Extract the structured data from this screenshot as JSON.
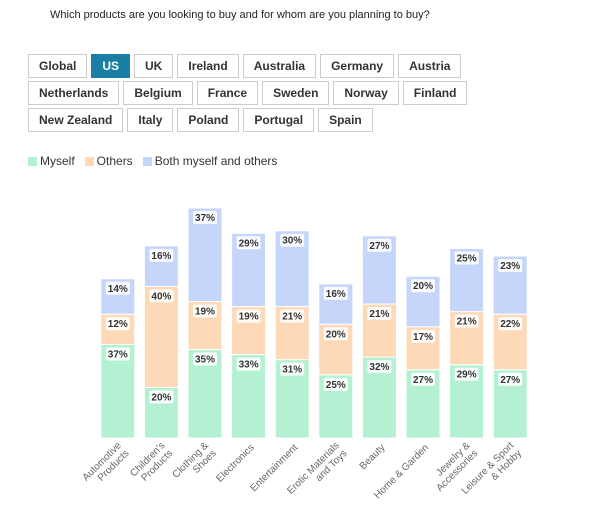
{
  "question": "Which products are you looking to buy and for whom are you planning to buy?",
  "tabs": {
    "rows": [
      [
        "Global",
        "US",
        "UK",
        "Ireland",
        "Australia",
        "Germany",
        "Austria"
      ],
      [
        "Netherlands",
        "Belgium",
        "France",
        "Sweden",
        "Norway",
        "Finland"
      ],
      [
        "New Zealand",
        "Italy",
        "Poland",
        "Portugal",
        "Spain"
      ]
    ],
    "selected": [
      0,
      1
    ]
  },
  "chart_data": {
    "type": "stacked-bar",
    "categories": [
      "Automotive Products",
      "Children's Products",
      "Clothing & Shoes",
      "Electronics",
      "Entertainment",
      "Erotic Materials and Toys",
      "Beauty",
      "Home & Garden",
      "Jewelry & Accessories",
      "Leisure & Sport & Hobby"
    ],
    "series": [
      {
        "name": "Myself",
        "color": "#b4f1d2",
        "values": [
          37,
          20,
          35,
          33,
          31,
          25,
          32,
          27,
          29,
          27
        ],
        "value_labels": [
          "37%",
          "20%",
          "35%",
          "33%",
          "31%",
          "25%",
          "32%",
          "27%",
          "29%",
          "27%"
        ]
      },
      {
        "name": "Others",
        "color": "#fdd9b7",
        "values": [
          12,
          40,
          19,
          19,
          21,
          20,
          21,
          17,
          21,
          22
        ],
        "value_labels": [
          "12%",
          "40%",
          "19%",
          "19%",
          "21%",
          "20%",
          "21%",
          "17%",
          "21%",
          "22%"
        ]
      },
      {
        "name": "Both myself and others",
        "color": "#c6d6fb",
        "values": [
          14,
          16,
          37,
          29,
          30,
          16,
          27,
          20,
          25,
          23
        ],
        "value_labels": [
          "14%",
          "16%",
          "37%",
          "29%",
          "30%",
          "16%",
          "27%",
          "20%",
          "25%",
          "23%"
        ]
      }
    ]
  }
}
